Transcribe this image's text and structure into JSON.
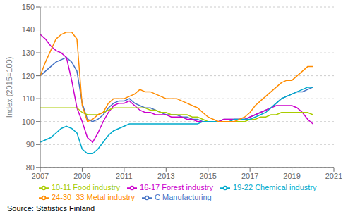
{
  "chart_data": {
    "type": "line",
    "title": "",
    "ylabel": "Index (2015=100)",
    "annotations": [
      "Source: Statistics Finland"
    ],
    "xlim": [
      2007,
      2021
    ],
    "ylim": [
      80,
      150
    ],
    "yticks": [
      80,
      90,
      100,
      110,
      120,
      130,
      140,
      150
    ],
    "xticks": [
      2007,
      2009,
      2011,
      2013,
      2015,
      2017,
      2019,
      2021
    ],
    "grid": "y",
    "legend": "bottom",
    "x": [
      2007,
      2007.25,
      2007.5,
      2007.75,
      2008,
      2008.25,
      2008.5,
      2008.75,
      2009,
      2009.25,
      2009.5,
      2009.75,
      2010,
      2010.25,
      2010.5,
      2010.75,
      2011,
      2011.25,
      2011.5,
      2011.75,
      2012,
      2012.25,
      2012.5,
      2012.75,
      2013,
      2013.25,
      2013.5,
      2013.75,
      2014,
      2014.25,
      2014.5,
      2014.75,
      2015,
      2015.25,
      2015.5,
      2015.75,
      2016,
      2016.25,
      2016.5,
      2016.75,
      2017,
      2017.25,
      2017.5,
      2017.75,
      2018,
      2018.25,
      2018.5,
      2018.75,
      2019,
      2019.25,
      2019.5,
      2019.75,
      2020
    ],
    "series": [
      {
        "name": "C Manufacturing",
        "color": "#4472C4",
        "values": [
          120,
          122,
          124,
          126,
          127,
          128,
          126,
          122,
          108,
          101,
          100,
          101,
          103,
          106,
          108,
          109,
          109,
          110,
          108,
          107,
          106,
          106,
          105,
          104,
          103,
          103,
          103,
          102,
          102,
          101,
          101,
          100,
          100,
          100,
          100,
          101,
          101,
          101,
          101,
          101,
          102,
          103,
          104,
          105,
          106,
          108,
          110,
          111,
          112,
          113,
          113,
          114,
          115
        ]
      },
      {
        "name": "16-17 Forest industry",
        "color": "#CC00CC",
        "values": [
          138,
          136,
          133,
          131,
          130,
          128,
          118,
          106,
          100,
          93,
          91,
          95,
          100,
          104,
          107,
          108,
          108,
          109,
          107,
          105,
          104,
          104,
          103,
          103,
          103,
          102,
          102,
          102,
          101,
          101,
          100,
          100,
          100,
          100,
          100,
          101,
          101,
          101,
          101,
          101,
          102,
          103,
          104,
          105,
          106,
          107,
          107,
          107,
          107,
          106,
          104,
          101,
          99
        ]
      },
      {
        "name": "10-11 Food industry",
        "color": "#AACC00",
        "values": [
          106,
          106,
          106,
          106,
          106,
          106,
          106,
          106,
          104,
          103,
          103,
          103,
          104,
          105,
          106,
          106,
          106,
          106,
          106,
          106,
          106,
          105,
          105,
          104,
          104,
          103,
          103,
          103,
          103,
          102,
          102,
          101,
          100,
          100,
          100,
          100,
          100,
          100,
          100,
          100,
          101,
          101,
          102,
          102,
          103,
          103,
          104,
          104,
          104,
          104,
          104,
          104,
          103
        ]
      },
      {
        "name": "19-22 Chemical industry",
        "color": "#00AACC",
        "values": [
          91,
          92,
          93,
          95,
          97,
          98,
          97,
          95,
          88,
          86,
          86,
          88,
          91,
          94,
          96,
          97,
          98,
          99,
          99,
          99,
          99,
          99,
          99,
          99,
          99,
          99,
          99,
          99,
          99,
          99,
          99,
          100,
          100,
          100,
          100,
          100,
          100,
          101,
          101,
          101,
          101,
          102,
          103,
          104,
          106,
          108,
          110,
          111,
          112,
          113,
          114,
          115,
          115
        ]
      },
      {
        "name": "24-30_33 Metal industry",
        "color": "#FF8C00",
        "values": [
          120,
          126,
          131,
          136,
          138,
          139,
          139,
          136,
          107,
          100,
          101,
          103,
          104,
          108,
          110,
          110,
          110,
          111,
          112,
          114,
          113,
          113,
          112,
          111,
          110,
          110,
          110,
          109,
          108,
          107,
          106,
          104,
          102,
          101,
          100,
          100,
          100,
          100,
          101,
          102,
          104,
          107,
          109,
          111,
          113,
          115,
          117,
          118,
          118,
          120,
          122,
          124,
          124
        ]
      }
    ]
  }
}
